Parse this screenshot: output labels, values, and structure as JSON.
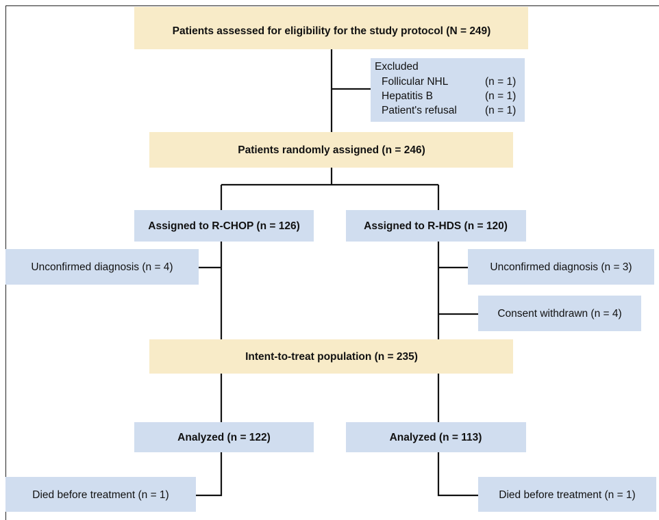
{
  "nodes": [
    {
      "label": "Patients assessed for eligibility for the study protocol (N = 249)"
    },
    {
      "label": "Excluded",
      "items": [
        {
          "reason": "Follicular NHL",
          "count": "(n = 1)"
        },
        {
          "reason": "Hepatitis B",
          "count": "(n = 1)"
        },
        {
          "reason": "Patient's refusal",
          "count": "(n = 1)"
        }
      ]
    },
    {
      "label": "Patients randomly assigned (n = 246)"
    },
    {
      "label": "Assigned to R-CHOP (n = 126)"
    },
    {
      "label": "Assigned to R-HDS (n = 120)"
    },
    {
      "label": "Unconfirmed diagnosis (n = 4)"
    },
    {
      "label": "Unconfirmed diagnosis (n = 3)"
    },
    {
      "label": "Consent withdrawn (n = 4)"
    },
    {
      "label": "Intent-to-treat population (n = 235)"
    },
    {
      "label": "Analyzed (n = 122)"
    },
    {
      "label": "Analyzed (n = 113)"
    },
    {
      "label": "Died before treatment (n = 1)"
    },
    {
      "label": "Died before treatment (n = 1)"
    }
  ]
}
